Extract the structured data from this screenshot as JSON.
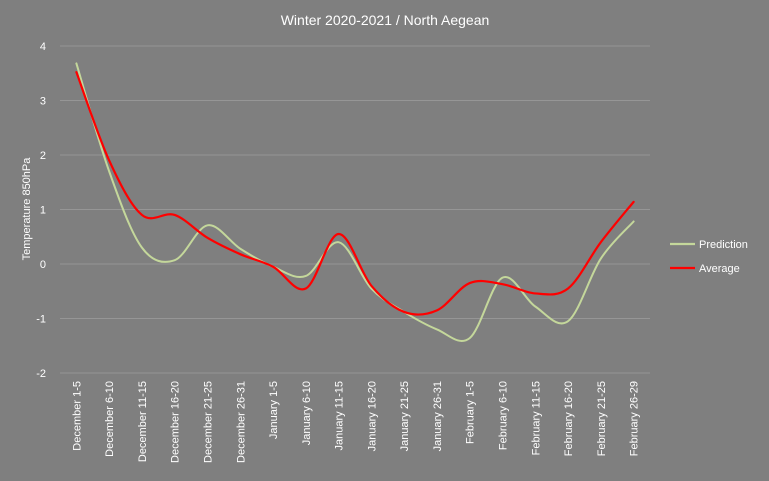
{
  "chart_data": {
    "type": "line",
    "title": "Winter 2020-2021 / North Aegean",
    "xlabel": "",
    "ylabel": "Temperature 850hPa",
    "ylim": [
      -2,
      4
    ],
    "yticks": [
      -2,
      -1,
      0,
      1,
      2,
      3,
      4
    ],
    "grid": true,
    "legend_position": "right",
    "categories": [
      "December 1-5",
      "December 6-10",
      "December 11-15",
      "December 16-20",
      "December 21-25",
      "December 26-31",
      "January 1-5",
      "January 6-10",
      "January 11-15",
      "January 16-20",
      "January 21-25",
      "January 26-31",
      "February 1-5",
      "February 6-10",
      "February 11-15",
      "February 16-20",
      "February 21-25",
      "February 26-29"
    ],
    "series": [
      {
        "name": "Prediction",
        "color": "#c4d79b",
        "values": [
          3.68,
          1.7,
          0.3,
          0.07,
          0.71,
          0.28,
          -0.05,
          -0.22,
          0.4,
          -0.45,
          -0.88,
          -1.2,
          -1.36,
          -0.25,
          -0.78,
          -1.05,
          0.1,
          0.78
        ]
      },
      {
        "name": "Average",
        "color": "#ff0000",
        "values": [
          3.52,
          1.9,
          0.9,
          0.9,
          0.48,
          0.18,
          -0.05,
          -0.45,
          0.55,
          -0.4,
          -0.88,
          -0.85,
          -0.35,
          -0.37,
          -0.54,
          -0.45,
          0.4,
          1.14
        ]
      }
    ]
  }
}
